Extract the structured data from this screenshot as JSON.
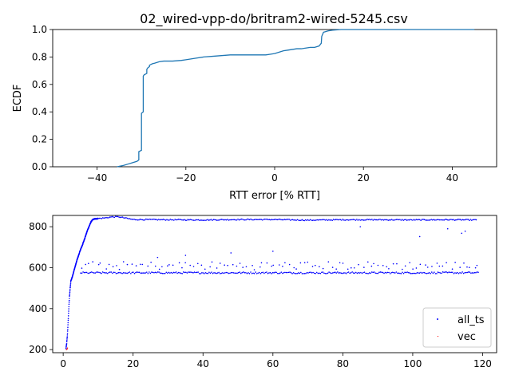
{
  "chart_data": [
    {
      "type": "line",
      "title": "02_wired-vpp-do/britram2-wired-5245.csv",
      "xlabel": "RTT error [% RTT]",
      "ylabel": "ECDF",
      "xlim": [
        -50,
        50
      ],
      "ylim": [
        0,
        1.0
      ],
      "xticks": [
        "−40",
        "−20",
        "0",
        "20",
        "40"
      ],
      "xtick_values": [
        -40,
        -20,
        0,
        20,
        40
      ],
      "yticks": [
        "0.0",
        "0.2",
        "0.4",
        "0.6",
        "0.8",
        "1.0"
      ],
      "ytick_values": [
        0,
        0.2,
        0.4,
        0.6,
        0.8,
        1.0
      ],
      "grid": false,
      "color": "#1f77b4",
      "series": [
        {
          "x": [
            -35.5,
            -34,
            -33,
            -32,
            -31,
            -30.6,
            -30.6,
            -30,
            -30,
            -29.6,
            -29.6,
            -29.4,
            -29.4,
            -28.8,
            -28.8,
            -28.6,
            -28.6,
            -28.2,
            -28.2,
            -27.6,
            -27,
            -26.5,
            -26,
            -25,
            -23,
            -21,
            -20,
            -18,
            -16,
            -14,
            -12,
            -10,
            -8,
            -6,
            -4,
            -2,
            -1,
            0,
            1,
            2,
            3,
            4,
            5,
            6,
            7,
            8,
            9,
            10,
            10.5,
            10.6,
            11,
            11.5,
            12,
            13,
            15,
            20,
            30,
            40,
            45
          ],
          "y": [
            0.0,
            0.01,
            0.02,
            0.03,
            0.04,
            0.05,
            0.11,
            0.12,
            0.39,
            0.4,
            0.66,
            0.67,
            0.67,
            0.68,
            0.71,
            0.72,
            0.72,
            0.73,
            0.74,
            0.75,
            0.755,
            0.76,
            0.765,
            0.77,
            0.77,
            0.775,
            0.78,
            0.79,
            0.8,
            0.805,
            0.81,
            0.815,
            0.815,
            0.815,
            0.815,
            0.815,
            0.82,
            0.825,
            0.835,
            0.845,
            0.85,
            0.855,
            0.86,
            0.86,
            0.865,
            0.87,
            0.87,
            0.88,
            0.9,
            0.95,
            0.98,
            0.985,
            0.99,
            0.995,
            1.0,
            1.0,
            1.0,
            1.0,
            1.0
          ]
        }
      ]
    },
    {
      "type": "scatter",
      "xlim": [
        -3,
        124
      ],
      "ylim": [
        185,
        855
      ],
      "xticks": [
        "0",
        "20",
        "40",
        "60",
        "80",
        "100",
        "120"
      ],
      "xtick_values": [
        0,
        20,
        40,
        60,
        80,
        100,
        120
      ],
      "yticks": [
        "200",
        "400",
        "600",
        "800"
      ],
      "ytick_values": [
        200,
        400,
        600,
        800
      ],
      "grid": false,
      "legend": "lower-right",
      "series": [
        {
          "name": "all_ts",
          "color": "#0000ff",
          "marker": "dot",
          "description": "ramp from ~200 at t=0.8 to ~530 at t=2.2, then ~560→835 by t=9; after t=9 three bands: ~835 (main), ~575 (dense), ~610 (sparse), to t=119",
          "x": [
            0.8,
            1.0,
            1.2,
            1.4,
            1.6,
            1.8,
            2.0,
            2.2,
            2.6,
            3.0,
            3.5,
            4.0,
            4.5,
            5.0,
            5.5,
            6.0,
            6.5,
            7.0,
            7.5,
            8.0,
            8.5,
            9.0,
            10,
            12,
            14,
            16,
            20,
            30,
            40,
            50,
            60,
            70,
            80,
            90,
            100,
            110,
            118.5
          ],
          "y": [
            205,
            230,
            270,
            330,
            400,
            460,
            500,
            535,
            555,
            580,
            610,
            640,
            665,
            690,
            710,
            735,
            760,
            785,
            805,
            825,
            835,
            838,
            840,
            843,
            848,
            848,
            835,
            834,
            833,
            835,
            835,
            832,
            834,
            834,
            833,
            834,
            833
          ],
          "band_low": {
            "level": 575,
            "x_range": [
              5,
              119
            ]
          },
          "band_mid": {
            "level": 610,
            "x_range": [
              5,
              119
            ]
          },
          "outliers_x": [
            102,
            114,
            115,
            110,
            85,
            60,
            48,
            35,
            27
          ],
          "outliers_y": [
            752,
            768,
            778,
            790,
            800,
            680,
            672,
            660,
            650
          ]
        },
        {
          "name": "vec",
          "color": "#ff0000",
          "marker": "pixel",
          "x": [
            0.8,
            1.0,
            1.1
          ],
          "y": [
            202,
            205,
            210
          ]
        }
      ]
    }
  ]
}
